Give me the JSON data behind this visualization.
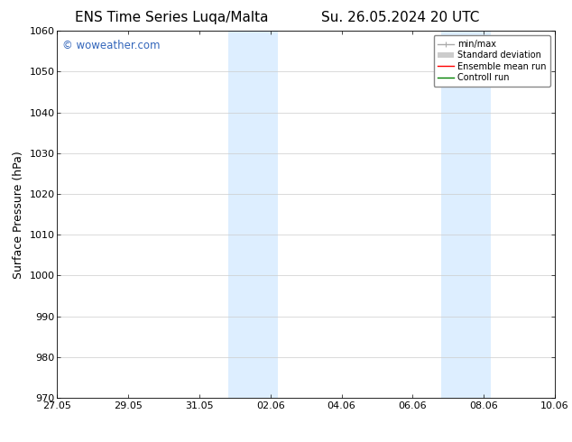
{
  "title_left": "ENS Time Series Luqa/Malta",
  "title_right": "Su. 26.05.2024 20 UTC",
  "ylabel": "Surface Pressure (hPa)",
  "ylim": [
    970,
    1060
  ],
  "yticks": [
    970,
    980,
    990,
    1000,
    1010,
    1020,
    1030,
    1040,
    1050,
    1060
  ],
  "xlim_num": [
    0,
    14
  ],
  "xtick_labels": [
    "27.05",
    "29.05",
    "31.05",
    "02.06",
    "04.06",
    "06.06",
    "08.06",
    "10.06"
  ],
  "xtick_positions": [
    0,
    2,
    4,
    6,
    8,
    10,
    12,
    14
  ],
  "shaded_bands": [
    {
      "xmin": 4.8,
      "xmax": 5.5
    },
    {
      "xmin": 5.5,
      "xmax": 6.2
    },
    {
      "xmin": 10.8,
      "xmax": 11.5
    },
    {
      "xmin": 11.5,
      "xmax": 12.2
    }
  ],
  "shade_color": "#ddeeff",
  "watermark_text": "© woweather.com",
  "watermark_color": "#3366bb",
  "legend_entries": [
    {
      "label": "min/max",
      "color": "#aaaaaa",
      "lw": 1.0,
      "ls": "-"
    },
    {
      "label": "Standard deviation",
      "color": "#cccccc",
      "lw": 5,
      "ls": "-"
    },
    {
      "label": "Ensemble mean run",
      "color": "red",
      "lw": 1.0,
      "ls": "-"
    },
    {
      "label": "Controll run",
      "color": "green",
      "lw": 1.0,
      "ls": "-"
    }
  ],
  "bg_color": "#ffffff",
  "grid_color": "#cccccc",
  "title_fontsize": 11,
  "tick_fontsize": 8,
  "label_fontsize": 9,
  "watermark_fontsize": 8.5,
  "legend_fontsize": 7
}
